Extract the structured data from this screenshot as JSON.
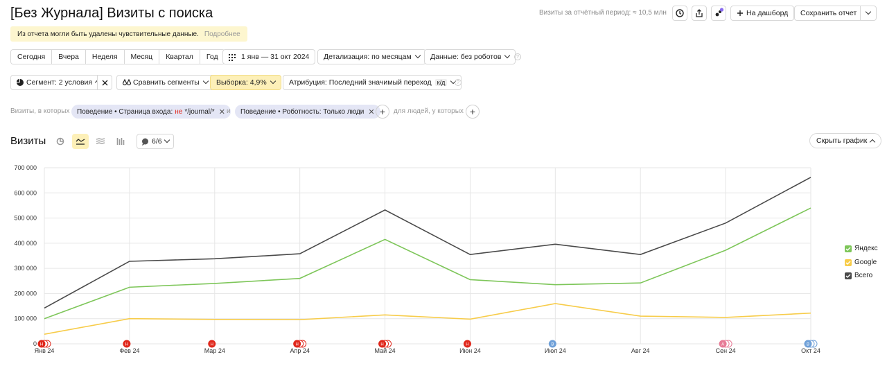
{
  "header": {
    "title": "[Без Журнала] Визиты с поиска",
    "period": "Визиты за отчётный период: ≈ 10,5 млн",
    "dashboard_label": "На дашборд",
    "save_label": "Сохранить отчет"
  },
  "warning": {
    "text": "Из отчета могли быть удалены чувствительные данные.",
    "more": "Подробнее"
  },
  "periods": [
    "Сегодня",
    "Вчера",
    "Неделя",
    "Месяц",
    "Квартал",
    "Год"
  ],
  "date_range": "1 янв — 31 окт 2024",
  "detail_label": "Детализация: по месяцам",
  "data_label": "Данные: без роботов",
  "segment_label": "Сегмент: 2 условия",
  "compare_label": "Сравнить сегменты",
  "sample_label": "Выборка: 4,9%",
  "attribution_label": "Атрибуция: Последний значимый переход",
  "attribution_badge": "к/д",
  "filters": {
    "prefix": "Визиты, в которых",
    "chip1_pre": "Поведение • Страница входа:",
    "chip1_neg": "не",
    "chip1_post": "*/journal/*",
    "conj": "и",
    "chip2": "Поведение • Роботность: Только люди",
    "suffix": "для людей, у которых"
  },
  "chart_section": {
    "title": "Визиты",
    "series_count": "6/6",
    "hide_label": "Скрыть график"
  },
  "chart_data": {
    "type": "line",
    "categories": [
      "Янв 24",
      "Фев 24",
      "Мар 24",
      "Апр 24",
      "Май 24",
      "Июн 24",
      "Июл 24",
      "Авг 24",
      "Сен 24",
      "Окт 24"
    ],
    "yticks": [
      "0",
      "100 000",
      "200 000",
      "300 000",
      "400 000",
      "500 000",
      "600 000",
      "700 000"
    ],
    "ylim": [
      0,
      700000
    ],
    "series": [
      {
        "name": "Яндекс",
        "color": "#7ec65a",
        "values": [
          100000,
          225000,
          240000,
          260000,
          415000,
          255000,
          235000,
          242000,
          372000,
          540000
        ]
      },
      {
        "name": "Google",
        "color": "#f7cc4a",
        "values": [
          38000,
          100000,
          97000,
          96000,
          115000,
          98000,
          160000,
          110000,
          105000,
          122000
        ]
      },
      {
        "name": "Всего",
        "color": "#4a4a4a",
        "values": [
          142000,
          328000,
          338000,
          358000,
          532000,
          355000,
          396000,
          355000,
          480000,
          662000
        ]
      }
    ],
    "grid": true,
    "legend": "right"
  },
  "annotations": [
    {
      "label": "Н",
      "color": "#e0271b",
      "count": 3
    },
    {
      "label": "Н",
      "color": "#e0271b",
      "count": 1
    },
    {
      "label": "Н",
      "color": "#e0271b",
      "count": 1
    },
    {
      "label": "Н",
      "color": "#e0271b",
      "count": 3
    },
    {
      "label": "Н",
      "color": "#e0271b",
      "count": 3
    },
    {
      "label": "Н",
      "color": "#e0271b",
      "count": 1
    },
    {
      "label": "В",
      "color": "#6fa0d8",
      "count": 1
    },
    null,
    {
      "label": "А",
      "color": "#e77a96",
      "count": 3
    },
    {
      "label": "В",
      "color": "#6fa0d8",
      "count": 3
    }
  ]
}
